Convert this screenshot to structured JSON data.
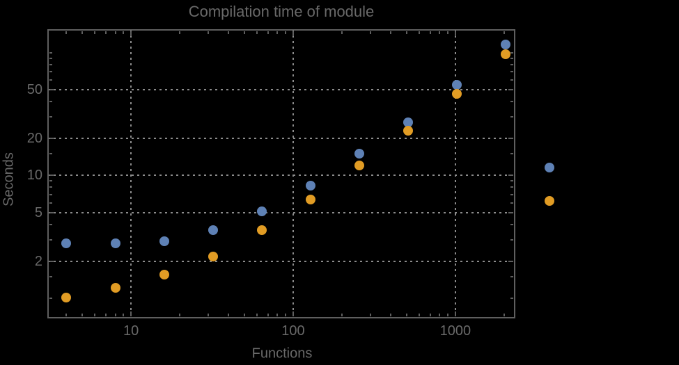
{
  "window": {
    "background": "#000000"
  },
  "chart_data": {
    "type": "scatter",
    "title": "Compilation time of module",
    "xlabel": "Functions",
    "ylabel": "Seconds",
    "x_scale": "log",
    "y_scale": "log",
    "xlim": [
      3.08,
      2320
    ],
    "ylim": [
      0.695,
      153
    ],
    "grid": "dotted, at labeled major ticks only",
    "x_major_ticks": [
      {
        "v": 10,
        "label": "10"
      },
      {
        "v": 100,
        "label": "100"
      },
      {
        "v": 1000,
        "label": "1000"
      }
    ],
    "y_major_ticks": [
      {
        "v": 2,
        "label": "2"
      },
      {
        "v": 5,
        "label": "5"
      },
      {
        "v": 10,
        "label": "10"
      },
      {
        "v": 20,
        "label": "20"
      },
      {
        "v": 50,
        "label": "50"
      }
    ],
    "x_minor_ticks": [
      4,
      5,
      6,
      7,
      8,
      9,
      20,
      30,
      40,
      50,
      60,
      70,
      80,
      90,
      200,
      300,
      400,
      500,
      600,
      700,
      800,
      900,
      2000
    ],
    "y_minor_ticks": [
      1,
      1.5,
      3,
      4,
      6,
      7,
      8,
      9,
      15,
      30,
      40,
      60,
      70,
      80,
      90,
      100
    ],
    "x": [
      4,
      8,
      16,
      32,
      64,
      128,
      256,
      512,
      1024,
      2048
    ],
    "series": [
      {
        "name": "blue-series",
        "color": "#5E81B5",
        "values": [
          2.8,
          2.8,
          2.9,
          3.6,
          5.1,
          8.3,
          15,
          27,
          55,
          116
        ]
      },
      {
        "name": "orange-series",
        "color": "#E19C24",
        "values": [
          1.02,
          1.22,
          1.55,
          2.2,
          3.6,
          6.4,
          12,
          23,
          46,
          97
        ]
      }
    ],
    "legend": {
      "position": "outside-right",
      "entries": [
        {
          "name": "blue",
          "color": "#5E81B5",
          "label": ""
        },
        {
          "name": "orange",
          "color": "#E19C24",
          "label": ""
        }
      ]
    },
    "colors": {
      "background": "#000000",
      "frame": "#5f5f5f",
      "grid": "#8c8c8c",
      "text": "#696969"
    }
  }
}
